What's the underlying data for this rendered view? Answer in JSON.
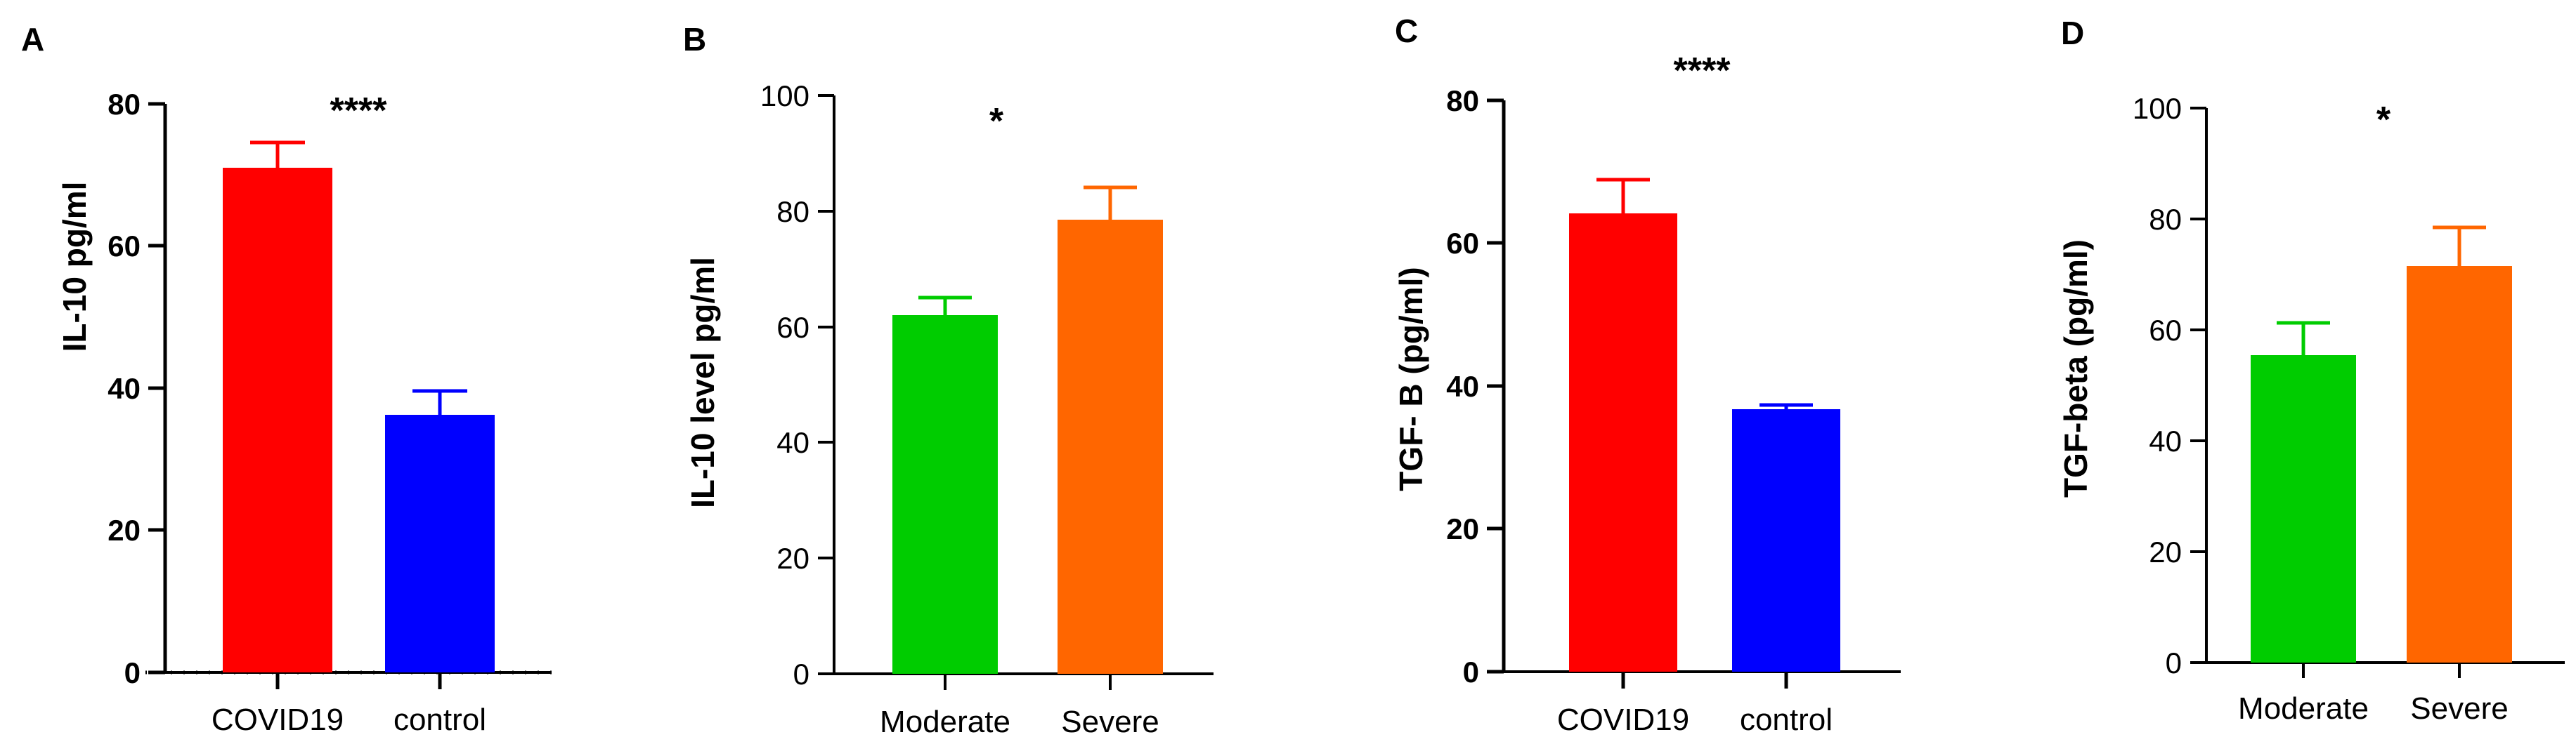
{
  "chart_data": [
    {
      "panel": "A",
      "type": "bar",
      "ylabel": "IL-10 pg/ml",
      "ylim": [
        0,
        80
      ],
      "yticks": [
        "0",
        "20",
        "40",
        "60",
        "80"
      ],
      "categories": [
        "COVID19",
        "control"
      ],
      "values": [
        71,
        36.2
      ],
      "errors": [
        3.5,
        3.3
      ],
      "colors": [
        "#ff0000",
        "#0000ff"
      ],
      "significance": "****"
    },
    {
      "panel": "B",
      "type": "bar",
      "ylabel": "IL-10 level pg/ml",
      "ylim": [
        0,
        100
      ],
      "yticks": [
        "0",
        "20",
        "40",
        "60",
        "80",
        "100"
      ],
      "categories": [
        "Moderate",
        "Severe"
      ],
      "values": [
        62,
        78.5
      ],
      "errors": [
        3,
        5.7
      ],
      "colors": [
        "#00cc00",
        "#ff6600"
      ],
      "significance": "*"
    },
    {
      "panel": "C",
      "type": "bar",
      "ylabel": "TGF- B (pg/ml)",
      "ylim": [
        0,
        80
      ],
      "yticks": [
        "0",
        "20",
        "40",
        "60",
        "80"
      ],
      "categories": [
        "COVID19",
        "control"
      ],
      "values": [
        64.2,
        36.3
      ],
      "errors": [
        4.7,
        0.6
      ],
      "colors": [
        "#ff0000",
        "#0000ff"
      ],
      "significance": "****"
    },
    {
      "panel": "D",
      "type": "bar",
      "ylabel": "TGF-beta (pg/ml)",
      "ylim": [
        0,
        100
      ],
      "yticks": [
        "0",
        "20",
        "40",
        "60",
        "80",
        "100"
      ],
      "categories": [
        "Moderate",
        "Severe"
      ],
      "values": [
        55.5,
        71.5
      ],
      "errors": [
        5.8,
        7
      ],
      "colors": [
        "#00cc00",
        "#ff6600"
      ],
      "significance": "*"
    }
  ]
}
